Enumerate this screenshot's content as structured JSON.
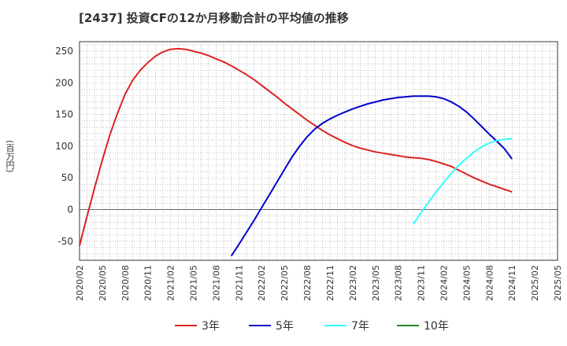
{
  "chart_data": {
    "type": "line",
    "title": "[2437]  投資CFの12か月移動合計の平均値の推移",
    "ylabel": "(百万円)",
    "xlabel": "",
    "ylim": [
      -80,
      265
    ],
    "yticks": [
      -50,
      0,
      50,
      100,
      150,
      200,
      250
    ],
    "x_ticks": [
      "2020/02",
      "2020/05",
      "2020/08",
      "2020/11",
      "2021/02",
      "2021/05",
      "2021/08",
      "2021/11",
      "2022/02",
      "2022/05",
      "2022/08",
      "2022/11",
      "2023/02",
      "2023/05",
      "2023/08",
      "2023/11",
      "2024/02",
      "2024/05",
      "2024/08",
      "2024/11",
      "2025/02",
      "2025/05"
    ],
    "grid": true,
    "legend_position": "bottom",
    "series": [
      {
        "name": "3年",
        "color": "#dd2222",
        "x": [
          "2020/02",
          "2020/03",
          "2020/04",
          "2020/05",
          "2020/06",
          "2020/07",
          "2020/08",
          "2020/09",
          "2020/10",
          "2020/11",
          "2020/12",
          "2021/01",
          "2021/02",
          "2021/03",
          "2021/04",
          "2021/05",
          "2021/06",
          "2021/07",
          "2021/08",
          "2021/09",
          "2021/10",
          "2021/11",
          "2021/12",
          "2022/01",
          "2022/02",
          "2022/03",
          "2022/04",
          "2022/05",
          "2022/06",
          "2022/07",
          "2022/08",
          "2022/09",
          "2022/10",
          "2022/11",
          "2022/12",
          "2023/01",
          "2023/02",
          "2023/03",
          "2023/04",
          "2023/05",
          "2023/06",
          "2023/07",
          "2023/08",
          "2023/09",
          "2023/10",
          "2023/11",
          "2023/12",
          "2024/01",
          "2024/02",
          "2024/03",
          "2024/04",
          "2024/05",
          "2024/06",
          "2024/07",
          "2024/08",
          "2024/09",
          "2024/10",
          "2024/11"
        ],
        "values": [
          -57,
          -10,
          35,
          78,
          118,
          152,
          182,
          204,
          220,
          232,
          242,
          249,
          253,
          254,
          253,
          250,
          247,
          243,
          238,
          233,
          227,
          220,
          213,
          205,
          196,
          187,
          178,
          168,
          159,
          150,
          141,
          133,
          125,
          118,
          112,
          106,
          101,
          97,
          94,
          91,
          89,
          87,
          85,
          83,
          82,
          81,
          79,
          76,
          72,
          68,
          62,
          56,
          50,
          45,
          40,
          36,
          32,
          28
        ]
      },
      {
        "name": "5年",
        "color": "#0000cc",
        "x": [
          "2021/10",
          "2021/11",
          "2021/12",
          "2022/01",
          "2022/02",
          "2022/03",
          "2022/04",
          "2022/05",
          "2022/06",
          "2022/07",
          "2022/08",
          "2022/09",
          "2022/10",
          "2022/11",
          "2022/12",
          "2023/01",
          "2023/02",
          "2023/03",
          "2023/04",
          "2023/05",
          "2023/06",
          "2023/07",
          "2023/08",
          "2023/09",
          "2023/10",
          "2023/11",
          "2023/12",
          "2024/01",
          "2024/02",
          "2024/03",
          "2024/04",
          "2024/05",
          "2024/06",
          "2024/07",
          "2024/08",
          "2024/09",
          "2024/10",
          "2024/11"
        ],
        "values": [
          -73,
          -55,
          -36,
          -17,
          3,
          23,
          43,
          63,
          83,
          100,
          115,
          127,
          136,
          143,
          149,
          154,
          159,
          163,
          167,
          170,
          173,
          175,
          177,
          178,
          179,
          179,
          179,
          178,
          175,
          170,
          163,
          154,
          143,
          131,
          119,
          108,
          96,
          80
        ]
      },
      {
        "name": "7年",
        "color": "#33ffff",
        "x": [
          "2023/10",
          "2023/11",
          "2023/12",
          "2024/01",
          "2024/02",
          "2024/03",
          "2024/04",
          "2024/05",
          "2024/06",
          "2024/07",
          "2024/08",
          "2024/09",
          "2024/10",
          "2024/11"
        ],
        "values": [
          -23,
          -5,
          12,
          28,
          43,
          57,
          70,
          81,
          91,
          99,
          105,
          109,
          111,
          112
        ]
      },
      {
        "name": "10年",
        "color": "#228b22",
        "x": [],
        "values": []
      }
    ]
  }
}
